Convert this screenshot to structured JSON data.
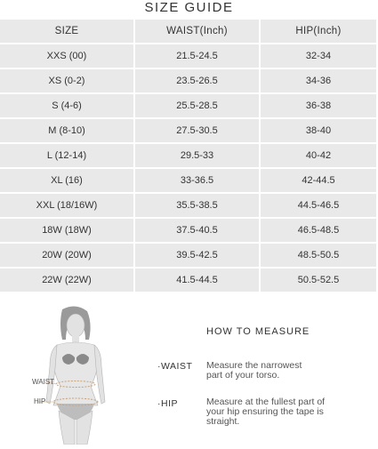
{
  "title": "SIZE GUIDE",
  "table": {
    "headers": [
      "SIZE",
      "WAIST(Inch)",
      "HIP(Inch)"
    ],
    "rows": [
      [
        "XXS (00)",
        "21.5-24.5",
        "32-34"
      ],
      [
        "XS (0-2)",
        "23.5-26.5",
        "34-36"
      ],
      [
        "S (4-6)",
        "25.5-28.5",
        "36-38"
      ],
      [
        "M (8-10)",
        "27.5-30.5",
        "38-40"
      ],
      [
        "L (12-14)",
        "29.5-33",
        "40-42"
      ],
      [
        "XL (16)",
        "33-36.5",
        "42-44.5"
      ],
      [
        "XXL (18/16W)",
        "35.5-38.5",
        "44.5-46.5"
      ],
      [
        "18W (18W)",
        "37.5-40.5",
        "46.5-48.5"
      ],
      [
        "20W (20W)",
        "39.5-42.5",
        "48.5-50.5"
      ],
      [
        "22W (22W)",
        "41.5-44.5",
        "50.5-52.5"
      ]
    ]
  },
  "figure": {
    "waist_label": "WAIST",
    "hip_label": "HIP"
  },
  "howto": {
    "title": "HOW TO MEASURE",
    "waist_label": "·WAIST",
    "waist_desc": "Measure the narrowest part of your torso.",
    "hip_label": "·HIP",
    "hip_desc": "Measure at the fullest part of your hip ensuring the tape is straight."
  },
  "colors": {
    "cell_bg": "#e9e9e9",
    "tape": "#c8a27c"
  }
}
